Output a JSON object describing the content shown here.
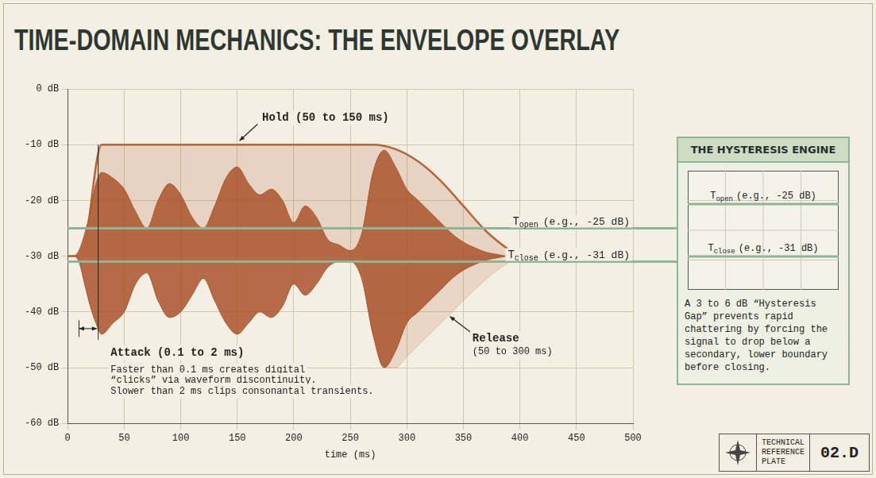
{
  "chart_data": {
    "type": "line",
    "title": "TIME-DOMAIN MECHANICS: THE ENVELOPE OVERLAY",
    "x_label": "time (ms)",
    "xlim": [
      0,
      500
    ],
    "xticks": [
      0,
      50,
      100,
      150,
      200,
      250,
      300,
      350,
      400,
      450,
      500
    ],
    "ylim": [
      -60,
      0
    ],
    "yticks": [
      {
        "value": -60,
        "label": "-60 dB"
      },
      {
        "value": -50,
        "label": "-50 dB"
      },
      {
        "value": -40,
        "label": "-40 dB"
      },
      {
        "value": -30,
        "label": "-30 dB"
      },
      {
        "value": -20,
        "label": "-20 dB"
      },
      {
        "value": -10,
        "label": "-10 dB"
      },
      {
        "value": 0,
        "label": "0 dB"
      }
    ],
    "grid": true,
    "rest_level": -30,
    "envelope": {
      "color": "#b5653a",
      "x": [
        0,
        12,
        30,
        270,
        290,
        310,
        330,
        350,
        370,
        390,
        400
      ],
      "values": [
        -30,
        -30,
        -10,
        -10,
        -10.8,
        -13,
        -16.5,
        -21,
        -25.5,
        -28.8,
        -30
      ]
    },
    "release_shade": {
      "x": [
        260,
        270,
        280,
        290,
        300,
        320,
        340,
        360,
        380,
        400
      ],
      "values": [
        -32,
        -44,
        -50,
        -50,
        -48,
        -44,
        -40,
        -36,
        -32.5,
        -30
      ]
    },
    "waveform": {
      "color": "#a9532b",
      "x": [
        0,
        5,
        10,
        15,
        20,
        25,
        30,
        40,
        50,
        60,
        70,
        80,
        90,
        100,
        110,
        120,
        130,
        140,
        150,
        160,
        170,
        180,
        190,
        200,
        210,
        220,
        230,
        240,
        250,
        260,
        270,
        280,
        290,
        300,
        310,
        320,
        330,
        340,
        350,
        360,
        370,
        380,
        390,
        400
      ],
      "upper": [
        -30,
        -30,
        -29,
        -26,
        -22,
        -17,
        -15,
        -16,
        -18,
        -22,
        -25,
        -20,
        -17,
        -19,
        -23,
        -25,
        -21,
        -16,
        -14,
        -17,
        -19,
        -18,
        -20,
        -24,
        -21,
        -23,
        -27,
        -28,
        -29,
        -26,
        -15,
        -11,
        -14,
        -18,
        -20,
        -22,
        -24,
        -26,
        -27.5,
        -28.5,
        -29.3,
        -29.7,
        -30,
        -30
      ],
      "lower": [
        -30,
        -30,
        -31,
        -35,
        -39,
        -42,
        -44,
        -42,
        -40,
        -35,
        -33,
        -38,
        -41,
        -40,
        -37,
        -34,
        -38,
        -42,
        -44,
        -42,
        -40,
        -41,
        -39,
        -35,
        -37,
        -35,
        -32,
        -31,
        -31,
        -34,
        -44,
        -50,
        -47,
        -42,
        -40,
        -38,
        -36,
        -34,
        -32.5,
        -31.5,
        -30.7,
        -30.3,
        -30,
        -30
      ]
    },
    "thresholds": [
      {
        "name": "T",
        "subscript": "open",
        "label": "(e.g., -25 dB)",
        "value": -25,
        "color": "#8fb596"
      },
      {
        "name": "T",
        "subscript": "close",
        "label": "(e.g., -31 dB)",
        "value": -31,
        "color": "#8fb596"
      }
    ],
    "annotations": {
      "hold": "Hold (50 to 150 ms)",
      "attack": "Attack (0.1 to 2 ms)",
      "attack_note": [
        "Faster than 0.1 ms creates digital",
        "“clicks” via waveform discontinuity.",
        "Slower than 2 ms clips consonantal transients."
      ],
      "release": [
        "Release",
        "(50 to 300 ms)"
      ]
    },
    "panel": {
      "title": "THE HYSTERESIS ENGINE",
      "text": "A 3 to 6 dB “Hysteresis Gap” prevents rapid chattering by forcing the signal to drop below a secondary, lower boundary before closing."
    },
    "plate": {
      "text": [
        "TECHNICAL",
        "REFERENCE",
        "PLATE"
      ],
      "code": "02.D"
    }
  }
}
